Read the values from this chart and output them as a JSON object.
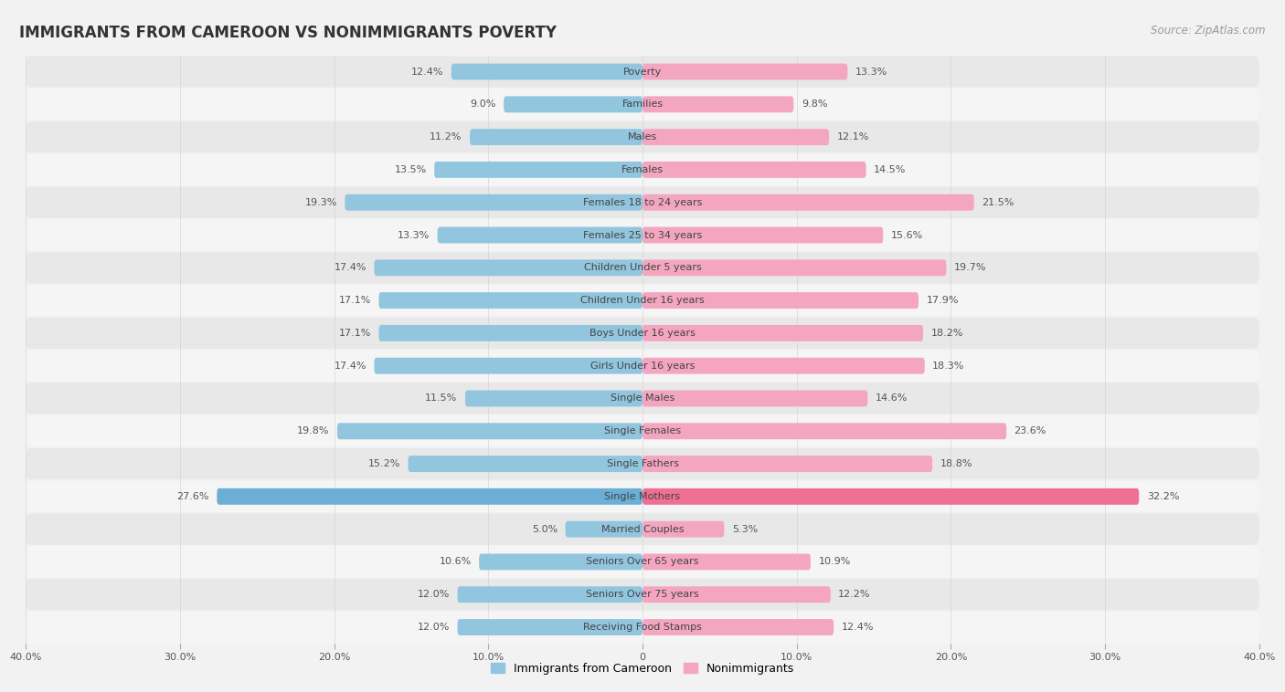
{
  "title": "IMMIGRANTS FROM CAMEROON VS NONIMMIGRANTS POVERTY",
  "source": "Source: ZipAtlas.com",
  "categories": [
    "Poverty",
    "Families",
    "Males",
    "Females",
    "Females 18 to 24 years",
    "Females 25 to 34 years",
    "Children Under 5 years",
    "Children Under 16 years",
    "Boys Under 16 years",
    "Girls Under 16 years",
    "Single Males",
    "Single Females",
    "Single Fathers",
    "Single Mothers",
    "Married Couples",
    "Seniors Over 65 years",
    "Seniors Over 75 years",
    "Receiving Food Stamps"
  ],
  "immigrants": [
    12.4,
    9.0,
    11.2,
    13.5,
    19.3,
    13.3,
    17.4,
    17.1,
    17.1,
    17.4,
    11.5,
    19.8,
    15.2,
    27.6,
    5.0,
    10.6,
    12.0,
    12.0
  ],
  "nonimmigrants": [
    13.3,
    9.8,
    12.1,
    14.5,
    21.5,
    15.6,
    19.7,
    17.9,
    18.2,
    18.3,
    14.6,
    23.6,
    18.8,
    32.2,
    5.3,
    10.9,
    12.2,
    12.4
  ],
  "immigrant_color": "#92c5de",
  "nonimmigrant_color": "#f4a6c0",
  "highlight_immigrant_color": "#6baed6",
  "highlight_nonimmigrant_color": "#f07095",
  "background_color": "#f2f2f2",
  "row_color_odd": "#e8e8e8",
  "row_color_even": "#f5f5f5",
  "xlim": 40.0,
  "bar_height": 0.5,
  "legend_immigrant": "Immigrants from Cameroon",
  "legend_nonimmigrant": "Nonimmigrants",
  "title_fontsize": 12,
  "source_fontsize": 8.5,
  "label_fontsize": 8.0,
  "category_fontsize": 8.0,
  "highlight_categories": [
    "Single Mothers"
  ]
}
